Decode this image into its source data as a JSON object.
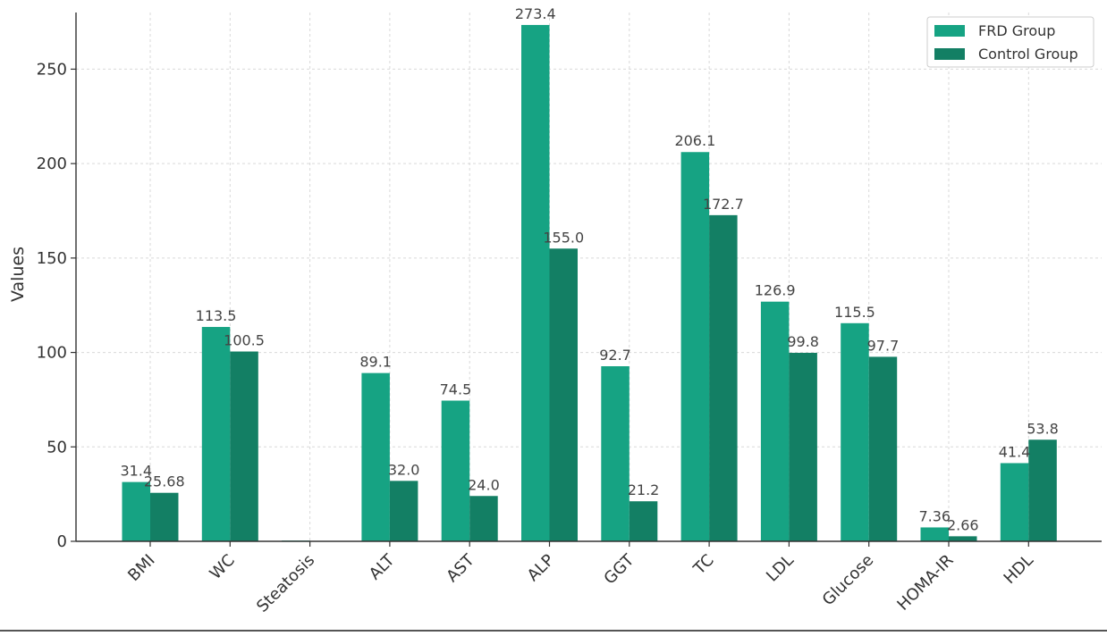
{
  "chart_data": {
    "type": "bar",
    "title": "",
    "xlabel": "",
    "ylabel": "Values",
    "ylim": [
      0,
      280
    ],
    "yticks": [
      0,
      50,
      100,
      150,
      200,
      250
    ],
    "grid": true,
    "legend_position": "top-right",
    "categories": [
      "BMI",
      "WC",
      "Steatosis",
      "ALT",
      "AST",
      "ALP",
      "GGT",
      "TC",
      "LDL",
      "Glucose",
      "HOMA-IR",
      "HDL"
    ],
    "series": [
      {
        "name": "FRD Group",
        "color": "#16a383",
        "values": [
          31.4,
          113.5,
          0.4,
          89.1,
          74.5,
          273.4,
          92.7,
          206.1,
          126.9,
          115.5,
          7.36,
          41.4
        ],
        "labels": [
          "31.4",
          "113.5",
          "",
          "89.1",
          "74.5",
          "273.4",
          "92.7",
          "206.1",
          "126.9",
          "115.5",
          "7.36",
          "41.4"
        ]
      },
      {
        "name": "Control Group",
        "color": "#137f64",
        "values": [
          25.68,
          100.5,
          0.2,
          32.0,
          24.0,
          155.0,
          21.2,
          172.7,
          99.8,
          97.7,
          2.66,
          53.8
        ],
        "labels": [
          "25.68",
          "100.5",
          "",
          "32.0",
          "24.0",
          "155.0",
          "21.2",
          "172.7",
          "99.8",
          "97.7",
          "2.66",
          "53.8"
        ]
      }
    ]
  }
}
